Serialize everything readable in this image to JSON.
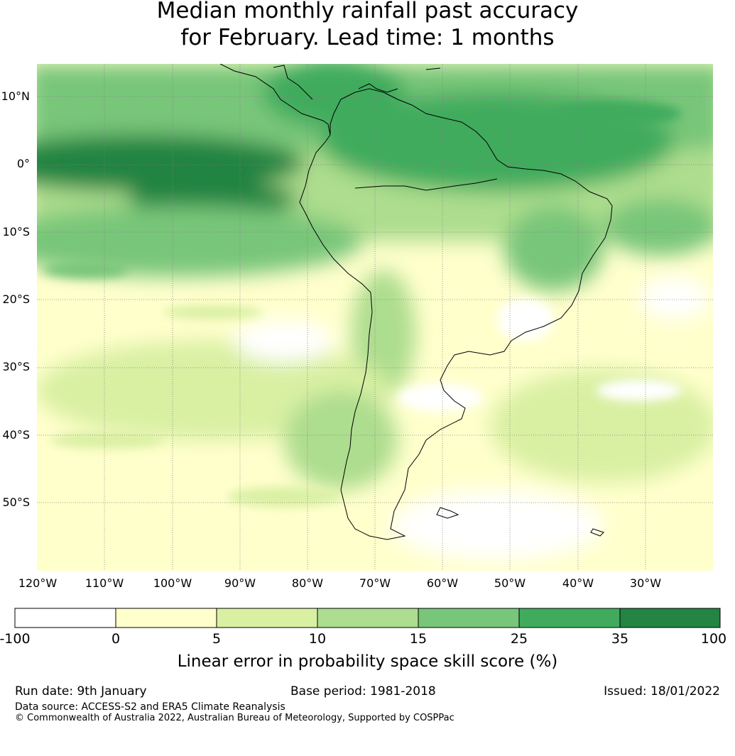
{
  "title": {
    "line1": "Median monthly rainfall past accuracy",
    "line2": "for February. Lead time: 1 months"
  },
  "map": {
    "lat_labels": [
      "10°N",
      "0°",
      "10°S",
      "20°S",
      "30°S",
      "40°S",
      "50°S"
    ],
    "lon_labels": [
      "120°W",
      "110°W",
      "100°W",
      "90°W",
      "80°W",
      "70°W",
      "60°W",
      "50°W",
      "40°W",
      "30°W"
    ],
    "extent": {
      "lon_min": -120,
      "lon_max": -20,
      "lat_min": -60,
      "lat_max": 15
    },
    "coastline_color": "#000000",
    "gridline_color": "#808080"
  },
  "colorbar": {
    "ticks": [
      "-100",
      "0",
      "5",
      "10",
      "15",
      "25",
      "35",
      "100"
    ],
    "colors": [
      "#ffffff",
      "#ffffcc",
      "#d9f0a3",
      "#addd8e",
      "#78c679",
      "#41ab5d",
      "#238443"
    ],
    "label": "Linear error in probability space skill score (%)"
  },
  "footer": {
    "run_date": "Run date: 9th January",
    "base_period": "Base period: 1981-2018",
    "issued": "Issued: 18/01/2022",
    "data_source": "Data source: ACCESS-S2 and ERA5 Climate Reanalysis",
    "copyright": "© Commonwealth of Australia 2022, Australian Bureau of Meteorology, Supported by COSPPac"
  }
}
